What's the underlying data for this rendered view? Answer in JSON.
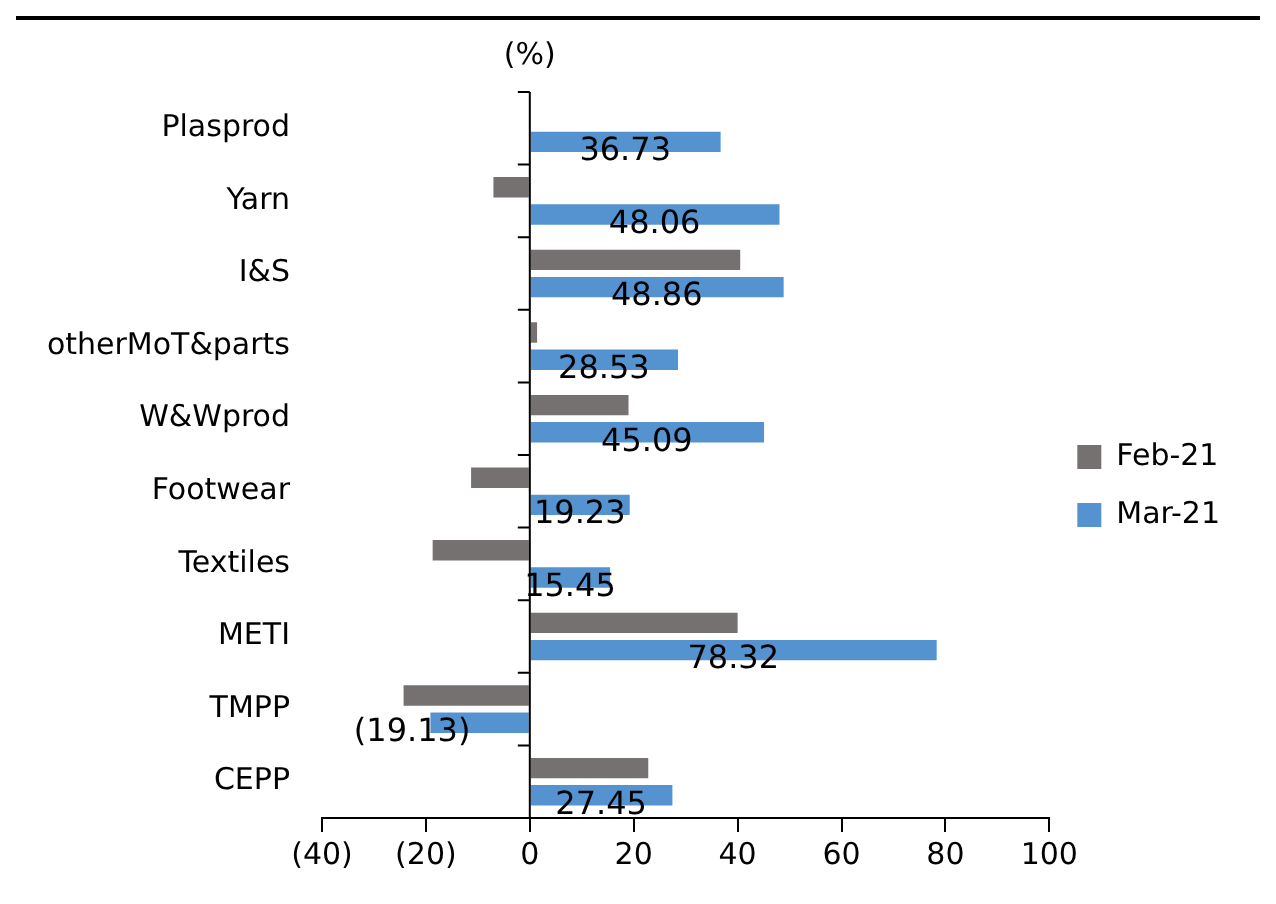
{
  "chart_data": {
    "type": "bar",
    "orientation": "horizontal",
    "xlabel": "(%)",
    "categories": [
      "Plasprod",
      "Yarn",
      "I&S",
      "otherMoT&parts",
      "W&Wprod",
      "Footwear",
      "Textiles",
      "METI",
      "TMPP",
      "CEPP"
    ],
    "series": [
      {
        "name": "Feb-21",
        "color": "#767171",
        "values": [
          null,
          -7,
          40.5,
          1.4,
          19,
          -11.3,
          -18.7,
          40,
          -24.3,
          22.8
        ]
      },
      {
        "name": "Mar-21",
        "color": "#5593d0",
        "values": [
          36.73,
          48.06,
          48.86,
          28.53,
          45.09,
          19.23,
          15.45,
          78.32,
          -19.13,
          27.45
        ],
        "value_labels": [
          "36.73",
          "48.06",
          "48.86",
          "28.53",
          "45.09",
          "19.23",
          "15.45",
          "78.32",
          "(19.13)",
          "27.45"
        ]
      }
    ],
    "xlim": [
      -40,
      100
    ],
    "xticks": [
      {
        "value": -40,
        "label": "(40)"
      },
      {
        "value": -20,
        "label": "(20)"
      },
      0,
      20,
      40,
      60,
      80,
      100
    ],
    "legend": "right"
  }
}
